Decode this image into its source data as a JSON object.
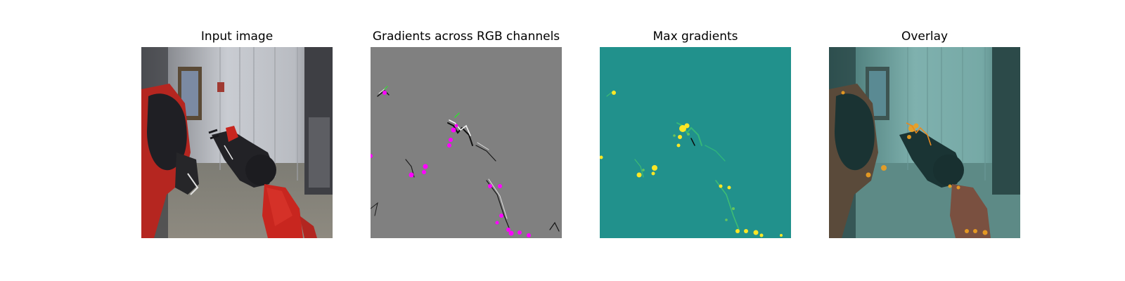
{
  "figure": {
    "panels": [
      {
        "title": "Input image"
      },
      {
        "title": "Gradients across RGB channels"
      },
      {
        "title": "Max gradients"
      },
      {
        "title": "Overlay"
      }
    ],
    "colors": {
      "gradient_gray": "#808080",
      "gradient_highlight": "#ff00ff",
      "colormap_background": "#21918c",
      "colormap_peak": "#fde725",
      "overlay_tint": "#2a8f8a",
      "robot_red": "#c8261f"
    }
  }
}
